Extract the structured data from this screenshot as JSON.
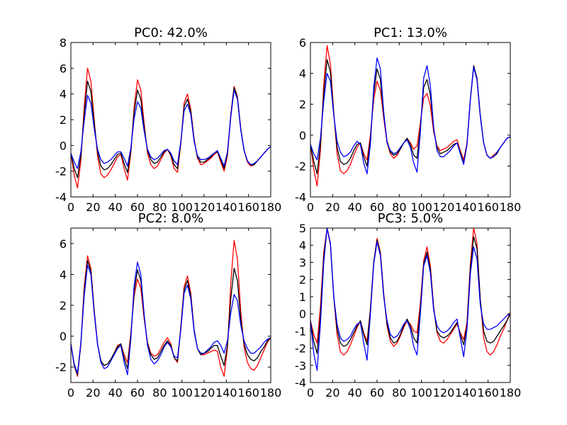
{
  "chart_data": [
    {
      "type": "line",
      "title": "PC0: 42.0%",
      "xlabel": "",
      "ylabel": "",
      "xlim": [
        0,
        180
      ],
      "ylim": [
        -4,
        8
      ],
      "xticks": [
        0,
        20,
        40,
        60,
        80,
        100,
        120,
        140,
        160,
        180
      ],
      "yticks": [
        -4,
        -2,
        0,
        2,
        4,
        6,
        8
      ],
      "grid": false,
      "x": [
        0,
        3,
        6,
        9,
        12,
        15,
        18,
        21,
        24,
        27,
        30,
        33,
        36,
        39,
        42,
        45,
        48,
        51,
        54,
        57,
        60,
        63,
        66,
        69,
        72,
        75,
        78,
        81,
        84,
        87,
        90,
        93,
        96,
        99,
        102,
        105,
        108,
        111,
        114,
        117,
        120,
        123,
        126,
        129,
        132,
        135,
        138,
        141,
        144,
        147,
        150,
        153,
        156,
        159,
        162,
        165,
        168,
        171,
        174,
        177,
        180
      ],
      "series": [
        {
          "color": "#ff0000",
          "values": [
            -0.6,
            -2.3,
            -3.3,
            -1.2,
            3.0,
            6.0,
            5.0,
            2.0,
            -0.8,
            -2.2,
            -2.5,
            -2.3,
            -1.9,
            -1.4,
            -0.9,
            -0.7,
            -1.8,
            -2.7,
            -0.6,
            3.0,
            5.1,
            4.3,
            1.7,
            -0.6,
            -1.5,
            -1.8,
            -1.6,
            -1.1,
            -0.6,
            -0.3,
            -0.8,
            -1.8,
            -2.1,
            0.1,
            3.3,
            4.0,
            2.8,
            0.5,
            -1.0,
            -1.5,
            -1.4,
            -1.2,
            -1.0,
            -0.7,
            -0.5,
            -1.3,
            -2.0,
            -0.8,
            2.4,
            4.6,
            3.8,
            1.3,
            -0.4,
            -1.3,
            -1.6,
            -1.5,
            -1.2,
            -0.9,
            -0.6,
            -0.3,
            -0.1
          ]
        },
        {
          "color": "#000000",
          "values": [
            -0.6,
            -1.8,
            -2.5,
            -0.8,
            2.4,
            5.0,
            4.2,
            1.7,
            -0.5,
            -1.6,
            -1.9,
            -1.8,
            -1.5,
            -1.1,
            -0.7,
            -0.6,
            -1.4,
            -2.1,
            -0.4,
            2.6,
            4.3,
            3.6,
            1.4,
            -0.4,
            -1.1,
            -1.4,
            -1.3,
            -0.9,
            -0.5,
            -0.3,
            -0.7,
            -1.5,
            -1.8,
            0.2,
            3.0,
            3.6,
            2.6,
            0.4,
            -0.9,
            -1.3,
            -1.3,
            -1.1,
            -0.9,
            -0.6,
            -0.5,
            -1.1,
            -1.8,
            -0.6,
            2.3,
            4.5,
            3.7,
            1.3,
            -0.4,
            -1.2,
            -1.5,
            -1.5,
            -1.2,
            -0.9,
            -0.6,
            -0.3,
            -0.1
          ]
        },
        {
          "color": "#0000ff",
          "values": [
            -0.6,
            -1.3,
            -1.8,
            -0.5,
            1.9,
            3.9,
            3.3,
            1.3,
            -0.3,
            -1.1,
            -1.4,
            -1.3,
            -1.1,
            -0.8,
            -0.5,
            -0.5,
            -1.0,
            -1.6,
            -0.2,
            2.1,
            3.4,
            2.9,
            1.1,
            -0.3,
            -0.9,
            -1.1,
            -1.0,
            -0.7,
            -0.4,
            -0.3,
            -0.6,
            -1.2,
            -1.5,
            0.3,
            2.7,
            3.2,
            2.4,
            0.3,
            -0.8,
            -1.1,
            -1.1,
            -1.0,
            -0.8,
            -0.6,
            -0.4,
            -1.0,
            -1.6,
            -0.5,
            2.2,
            4.3,
            3.6,
            1.2,
            -0.4,
            -1.2,
            -1.5,
            -1.4,
            -1.2,
            -0.9,
            -0.6,
            -0.3,
            -0.1
          ]
        }
      ]
    },
    {
      "type": "line",
      "title": "PC1: 13.0%",
      "xlabel": "",
      "ylabel": "",
      "xlim": [
        0,
        180
      ],
      "ylim": [
        -4,
        6
      ],
      "xticks": [
        0,
        20,
        40,
        60,
        80,
        100,
        120,
        140,
        160,
        180
      ],
      "yticks": [
        -4,
        -2,
        0,
        2,
        4,
        6
      ],
      "grid": false,
      "x": [
        0,
        3,
        6,
        9,
        12,
        15,
        18,
        21,
        24,
        27,
        30,
        33,
        36,
        39,
        42,
        45,
        48,
        51,
        54,
        57,
        60,
        63,
        66,
        69,
        72,
        75,
        78,
        81,
        84,
        87,
        90,
        93,
        96,
        99,
        102,
        105,
        108,
        111,
        114,
        117,
        120,
        123,
        126,
        129,
        132,
        135,
        138,
        141,
        144,
        147,
        150,
        153,
        156,
        159,
        162,
        165,
        168,
        171,
        174,
        177,
        180
      ],
      "series": [
        {
          "color": "#ff0000",
          "values": [
            -0.6,
            -2.2,
            -3.3,
            -1.0,
            3.3,
            5.8,
            4.6,
            1.5,
            -1.2,
            -2.3,
            -2.5,
            -2.3,
            -1.9,
            -1.3,
            -0.8,
            -0.5,
            -1.2,
            -1.6,
            0.0,
            2.3,
            3.5,
            2.9,
            1.1,
            -0.5,
            -1.2,
            -1.5,
            -1.3,
            -0.9,
            -0.5,
            -0.2,
            -0.5,
            -0.9,
            -0.7,
            0.8,
            2.4,
            2.7,
            1.9,
            0.2,
            -0.7,
            -1.0,
            -0.9,
            -0.8,
            -0.6,
            -0.4,
            -0.3,
            -1.0,
            -1.6,
            -0.5,
            2.3,
            4.4,
            3.6,
            1.2,
            -0.5,
            -1.3,
            -1.5,
            -1.3,
            -1.1,
            -0.8,
            -0.5,
            -0.2,
            -0.1
          ]
        },
        {
          "color": "#000000",
          "values": [
            -0.6,
            -1.7,
            -2.5,
            -0.6,
            2.7,
            4.9,
            4.1,
            1.4,
            -0.8,
            -1.7,
            -1.9,
            -1.8,
            -1.5,
            -1.0,
            -0.6,
            -0.5,
            -1.4,
            -2.0,
            -0.3,
            2.7,
            4.3,
            3.6,
            1.3,
            -0.4,
            -1.1,
            -1.3,
            -1.2,
            -0.9,
            -0.5,
            -0.2,
            -0.6,
            -1.3,
            -1.5,
            0.5,
            3.1,
            3.6,
            2.6,
            0.4,
            -0.8,
            -1.2,
            -1.1,
            -1.0,
            -0.8,
            -0.6,
            -0.5,
            -1.1,
            -1.8,
            -0.6,
            2.3,
            4.5,
            3.7,
            1.3,
            -0.5,
            -1.3,
            -1.5,
            -1.4,
            -1.2,
            -0.8,
            -0.5,
            -0.2,
            -0.1
          ]
        },
        {
          "color": "#0000ff",
          "values": [
            -0.6,
            -1.2,
            -1.6,
            -0.2,
            2.2,
            4.0,
            3.5,
            1.3,
            -0.4,
            -1.1,
            -1.4,
            -1.3,
            -1.1,
            -0.7,
            -0.4,
            -0.6,
            -1.8,
            -2.5,
            -0.6,
            3.1,
            5.0,
            4.3,
            1.5,
            -0.5,
            -1.0,
            -1.2,
            -1.1,
            -0.8,
            -0.5,
            -0.3,
            -0.8,
            -1.8,
            -2.4,
            0.2,
            3.7,
            4.5,
            3.2,
            0.5,
            -1.0,
            -1.4,
            -1.4,
            -1.2,
            -1.0,
            -0.7,
            -0.5,
            -1.2,
            -1.9,
            -0.6,
            2.3,
            4.4,
            3.6,
            1.2,
            -0.5,
            -1.3,
            -1.5,
            -1.4,
            -1.1,
            -0.8,
            -0.5,
            -0.2,
            -0.1
          ]
        }
      ]
    },
    {
      "type": "line",
      "title": "PC2: 8.0%",
      "xlabel": "",
      "ylabel": "",
      "xlim": [
        0,
        180
      ],
      "ylim": [
        -3,
        7
      ],
      "xticks": [
        0,
        20,
        40,
        60,
        80,
        100,
        120,
        140,
        160,
        180
      ],
      "yticks": [
        -2,
        0,
        2,
        4,
        6
      ],
      "grid": false,
      "x": [
        0,
        3,
        6,
        9,
        12,
        15,
        18,
        21,
        24,
        27,
        30,
        33,
        36,
        39,
        42,
        45,
        48,
        51,
        54,
        57,
        60,
        63,
        66,
        69,
        72,
        75,
        78,
        81,
        84,
        87,
        90,
        93,
        96,
        99,
        102,
        105,
        108,
        111,
        114,
        117,
        120,
        123,
        126,
        129,
        132,
        135,
        138,
        141,
        144,
        147,
        150,
        153,
        156,
        159,
        162,
        165,
        168,
        171,
        174,
        177,
        180
      ],
      "series": [
        {
          "color": "#ff0000",
          "values": [
            -0.5,
            -1.9,
            -2.6,
            -0.5,
            3.2,
            5.2,
            4.4,
            1.7,
            -0.5,
            -1.6,
            -1.9,
            -1.8,
            -1.5,
            -1.1,
            -0.6,
            -0.5,
            -1.2,
            -1.7,
            0.2,
            2.6,
            3.7,
            3.1,
            1.1,
            -0.4,
            -1.1,
            -1.3,
            -1.2,
            -0.8,
            -0.4,
            -0.1,
            -0.5,
            -1.4,
            -1.7,
            0.6,
            3.2,
            3.9,
            2.8,
            0.4,
            -0.8,
            -1.2,
            -1.2,
            -1.1,
            -1.0,
            -0.9,
            -1.0,
            -2.0,
            -2.6,
            -0.8,
            3.4,
            6.2,
            5.0,
            1.6,
            -0.7,
            -1.7,
            -2.1,
            -2.2,
            -1.9,
            -1.4,
            -0.9,
            -0.4,
            -0.1
          ]
        },
        {
          "color": "#000000",
          "values": [
            -0.5,
            -1.9,
            -2.5,
            -0.5,
            2.9,
            4.9,
            4.2,
            1.6,
            -0.5,
            -1.6,
            -1.9,
            -1.8,
            -1.5,
            -1.1,
            -0.7,
            -0.5,
            -1.4,
            -2.1,
            0.0,
            2.9,
            4.3,
            3.6,
            1.3,
            -0.5,
            -1.2,
            -1.5,
            -1.4,
            -1.0,
            -0.6,
            -0.3,
            -0.6,
            -1.4,
            -1.6,
            0.5,
            3.0,
            3.6,
            2.6,
            0.4,
            -0.8,
            -1.2,
            -1.1,
            -1.0,
            -0.8,
            -0.6,
            -0.6,
            -1.3,
            -1.9,
            -0.6,
            2.4,
            4.4,
            3.6,
            1.1,
            -0.5,
            -1.2,
            -1.5,
            -1.6,
            -1.4,
            -1.0,
            -0.7,
            -0.3,
            -0.1
          ]
        },
        {
          "color": "#0000ff",
          "values": [
            -0.5,
            -1.8,
            -2.4,
            -0.4,
            2.6,
            4.6,
            4.0,
            1.5,
            -0.5,
            -1.7,
            -2.1,
            -2.0,
            -1.6,
            -1.2,
            -0.8,
            -0.6,
            -1.7,
            -2.5,
            -0.2,
            3.3,
            4.8,
            4.0,
            1.4,
            -0.6,
            -1.5,
            -1.8,
            -1.6,
            -1.2,
            -0.7,
            -0.4,
            -0.7,
            -1.3,
            -1.4,
            0.4,
            2.8,
            3.3,
            2.4,
            0.3,
            -0.8,
            -1.1,
            -1.1,
            -0.9,
            -0.7,
            -0.4,
            -0.3,
            -0.6,
            -1.1,
            -0.3,
            1.5,
            2.7,
            2.3,
            0.7,
            -0.3,
            -0.8,
            -1.1,
            -1.1,
            -0.9,
            -0.7,
            -0.4,
            -0.2,
            -0.1
          ]
        }
      ]
    },
    {
      "type": "line",
      "title": "PC3: 5.0%",
      "xlabel": "",
      "ylabel": "",
      "xlim": [
        0,
        180
      ],
      "ylim": [
        -4,
        5
      ],
      "xticks": [
        0,
        20,
        40,
        60,
        80,
        100,
        120,
        140,
        160,
        180
      ],
      "yticks": [
        -4,
        -3,
        -2,
        -1,
        0,
        1,
        2,
        3,
        4,
        5
      ],
      "grid": false,
      "x": [
        0,
        3,
        6,
        9,
        12,
        15,
        18,
        21,
        24,
        27,
        30,
        33,
        36,
        39,
        42,
        45,
        48,
        51,
        54,
        57,
        60,
        63,
        66,
        69,
        72,
        75,
        78,
        81,
        84,
        87,
        90,
        93,
        96,
        99,
        102,
        105,
        108,
        111,
        114,
        117,
        120,
        123,
        126,
        129,
        132,
        135,
        138,
        141,
        144,
        147,
        150,
        153,
        156,
        159,
        162,
        165,
        168,
        171,
        174,
        177,
        180
      ],
      "series": [
        {
          "color": "#ff0000",
          "values": [
            -0.4,
            -1.2,
            -1.7,
            0.4,
            3.6,
            5.0,
            4.0,
            1.0,
            -1.2,
            -2.2,
            -2.4,
            -2.2,
            -1.8,
            -1.3,
            -0.8,
            -0.4,
            -1.1,
            -1.6,
            0.3,
            3.0,
            4.4,
            3.6,
            1.2,
            -0.7,
            -1.6,
            -1.9,
            -1.7,
            -1.3,
            -0.8,
            -0.4,
            -0.6,
            -1.0,
            -1.1,
            0.6,
            3.1,
            3.9,
            2.8,
            0.4,
            -1.1,
            -1.6,
            -1.7,
            -1.5,
            -1.2,
            -0.9,
            -0.6,
            -1.1,
            -1.5,
            -0.5,
            2.9,
            5.0,
            4.1,
            0.8,
            -1.4,
            -2.2,
            -2.4,
            -2.2,
            -1.8,
            -1.3,
            -0.9,
            -0.4,
            0.1
          ]
        },
        {
          "color": "#000000",
          "values": [
            -0.4,
            -1.6,
            -2.3,
            -0.1,
            3.3,
            5.0,
            4.1,
            1.0,
            -0.9,
            -1.7,
            -1.9,
            -1.8,
            -1.5,
            -1.1,
            -0.7,
            -0.4,
            -1.2,
            -1.8,
            0.2,
            3.0,
            4.3,
            3.5,
            1.1,
            -0.6,
            -1.4,
            -1.7,
            -1.6,
            -1.2,
            -0.7,
            -0.3,
            -0.7,
            -1.4,
            -1.7,
            0.3,
            2.9,
            3.6,
            2.6,
            0.3,
            -1.0,
            -1.3,
            -1.4,
            -1.3,
            -1.1,
            -0.8,
            -0.5,
            -1.2,
            -1.8,
            -0.7,
            2.6,
            4.5,
            3.8,
            0.8,
            -1.0,
            -1.6,
            -1.7,
            -1.6,
            -1.3,
            -1.0,
            -0.7,
            -0.4,
            0.0
          ]
        },
        {
          "color": "#0000ff",
          "values": [
            -0.4,
            -2.3,
            -3.3,
            -0.6,
            3.0,
            5.0,
            4.1,
            1.0,
            -0.6,
            -1.4,
            -1.6,
            -1.5,
            -1.3,
            -0.9,
            -0.6,
            -0.5,
            -1.7,
            -2.7,
            0.0,
            2.9,
            4.2,
            3.4,
            1.0,
            -0.4,
            -1.2,
            -1.4,
            -1.3,
            -1.0,
            -0.6,
            -0.4,
            -0.9,
            -1.9,
            -2.4,
            0.0,
            2.8,
            3.4,
            2.4,
            0.2,
            -0.7,
            -1.0,
            -1.1,
            -1.0,
            -0.8,
            -0.5,
            -0.3,
            -1.4,
            -2.5,
            -0.9,
            2.3,
            3.9,
            3.2,
            0.5,
            -0.6,
            -0.9,
            -0.9,
            -0.8,
            -0.7,
            -0.5,
            -0.3,
            -0.1,
            0.0
          ]
        }
      ]
    }
  ]
}
